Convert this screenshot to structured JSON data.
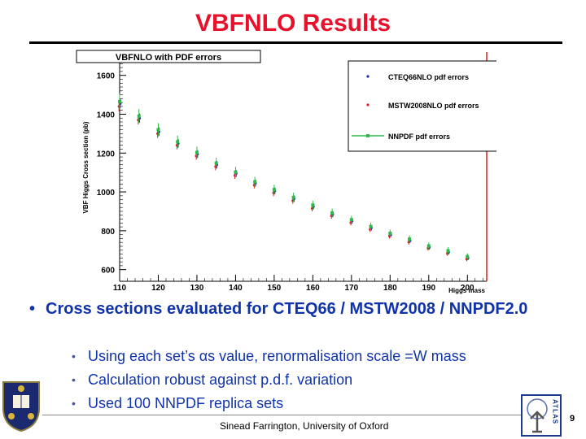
{
  "slide": {
    "title": "VBFNLO Results",
    "bullet_main": "Cross sections evaluated for CTEQ66 / MSTW2008 / NNPDF2.0",
    "sub_bullets": [
      "Using each set’s αs value, renormalisation scale =W mass",
      "Calculation robust against p.d.f. variation",
      "Used 100 NNPDF replica sets"
    ],
    "footer": "Sinead Farrington, University of Oxford",
    "page_number": "9",
    "atlas_logo_text": "ATLAS"
  },
  "colors": {
    "title": "#e8102a",
    "bullet": "#1133aa",
    "cteq": "#1a2bb0",
    "mstw": "#d42020",
    "nnpdf": "#2db84a"
  },
  "chart_data": {
    "type": "scatter",
    "title": "VBFNLO with PDF errors",
    "xlabel": "Higgs mass",
    "ylabel": "VBF Higgs Cross section (pb)",
    "xlim": [
      110,
      205
    ],
    "ylim": [
      540,
      1720
    ],
    "x_ticks": [
      110,
      120,
      130,
      140,
      150,
      160,
      170,
      180,
      190,
      200
    ],
    "y_ticks": [
      600,
      800,
      1000,
      1200,
      1400,
      1600
    ],
    "legend_position": "top-right",
    "x": [
      110,
      115,
      120,
      125,
      130,
      135,
      140,
      145,
      150,
      155,
      160,
      165,
      170,
      175,
      180,
      185,
      190,
      195,
      200
    ],
    "series": [
      {
        "name": "CTEQ66NLO pdf errors",
        "values": [
          1455,
          1380,
          1310,
          1250,
          1195,
          1140,
          1095,
          1045,
          1005,
          965,
          925,
          885,
          850,
          815,
          780,
          750,
          715,
          690,
          660
        ],
        "errors": [
          25,
          23,
          22,
          21,
          20,
          19,
          18,
          17,
          17,
          16,
          15,
          15,
          14,
          14,
          13,
          13,
          12,
          12,
          11
        ]
      },
      {
        "name": "MSTW2008NLO pdf errors",
        "values": [
          1440,
          1370,
          1300,
          1240,
          1185,
          1130,
          1085,
          1035,
          995,
          955,
          915,
          877,
          842,
          807,
          773,
          742,
          710,
          683,
          654
        ],
        "errors": [
          25,
          23,
          22,
          21,
          20,
          19,
          18,
          17,
          17,
          16,
          15,
          15,
          14,
          14,
          13,
          13,
          12,
          12,
          11
        ]
      },
      {
        "name": "NNPDF pdf errors",
        "values": [
          1465,
          1390,
          1320,
          1258,
          1203,
          1148,
          1102,
          1052,
          1012,
          972,
          932,
          892,
          857,
          822,
          787,
          757,
          722,
          697,
          667
        ],
        "errors": [
          40,
          36,
          34,
          32,
          30,
          28,
          27,
          26,
          25,
          24,
          23,
          22,
          21,
          20,
          19,
          19,
          18,
          18,
          17
        ]
      }
    ]
  }
}
